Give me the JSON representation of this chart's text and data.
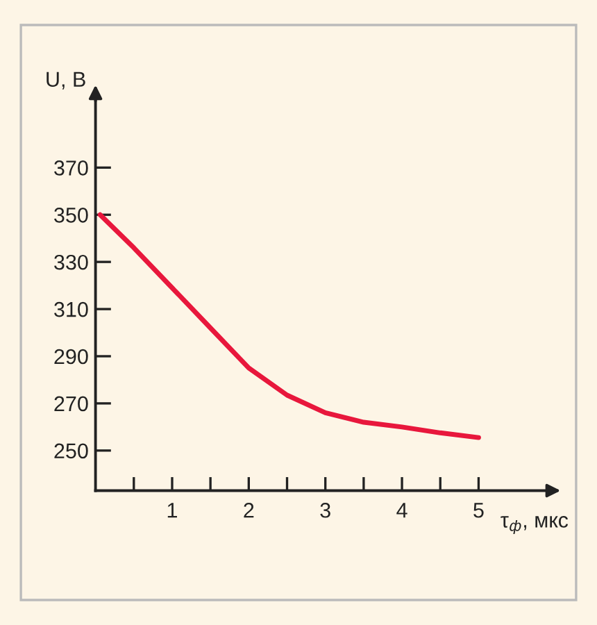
{
  "chart_data": {
    "type": "line",
    "xlabel": "τ$_{ф}$, мкс",
    "ylabel": "U, В",
    "series": [
      {
        "color": "#e8173c",
        "x": [
          0.06,
          0.5,
          1,
          1.5,
          2,
          2.5,
          3,
          3.5,
          4,
          4.5,
          5
        ],
        "values": [
          350,
          336,
          319,
          302,
          285,
          273.5,
          266,
          262,
          260,
          257.5,
          255.5
        ]
      }
    ],
    "xlim": [
      0,
      6
    ],
    "ylim": [
      233,
      400
    ],
    "xticks": [
      {
        "value": 0.5,
        "label": null
      },
      1,
      {
        "value": 1.5,
        "label": null
      },
      2,
      {
        "value": 2.5,
        "label": null
      },
      3,
      {
        "value": 3.5,
        "label": null
      },
      4,
      {
        "value": 4.5,
        "label": null
      },
      5
    ],
    "yticks": [
      250,
      270,
      290,
      310,
      330,
      350,
      370
    ],
    "grid": false,
    "legend": false,
    "marker": "none",
    "line_style": "solid"
  }
}
